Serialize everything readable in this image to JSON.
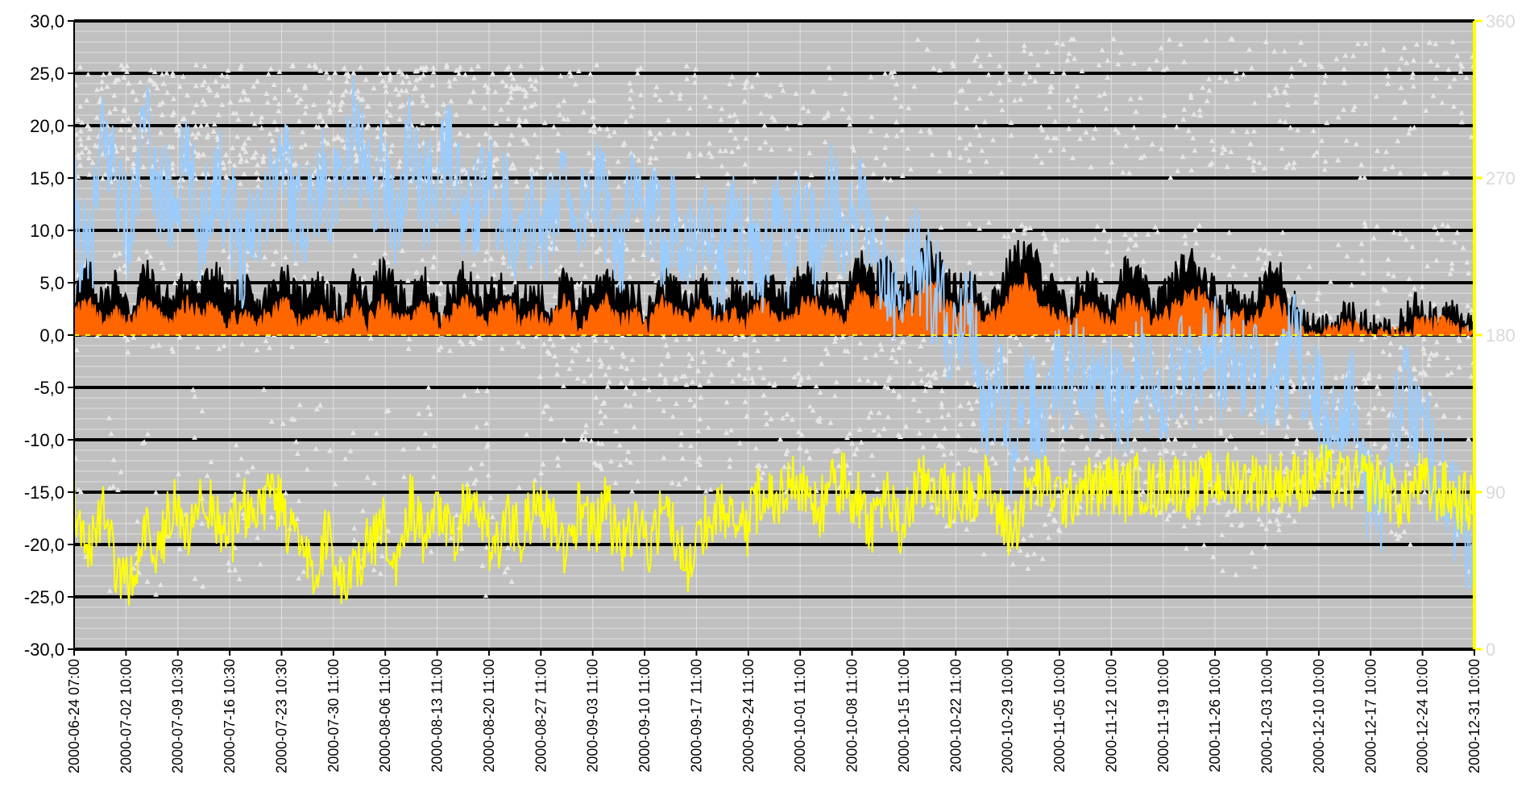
{
  "chart_data": {
    "type": "line",
    "title": "",
    "xlabel": "",
    "ylabel": "",
    "ylim": [
      -30,
      30
    ],
    "y2lim": [
      0,
      360
    ],
    "grid": true,
    "legend": "none",
    "y_ticks": [
      "30,0",
      "25,0",
      "20,0",
      "15,0",
      "10,0",
      "5,0",
      "0,0",
      "-5,0",
      "-10,0",
      "-15,0",
      "-20,0",
      "-25,0",
      "-30,0"
    ],
    "y2_ticks": [
      "360",
      "270",
      "180",
      "90",
      "0"
    ],
    "x_ticks": [
      "2000-06-24 07:00",
      "2000-07-02 10:00",
      "2000-07-09 10:30",
      "2000-07-16 10:30",
      "2000-07-23 10:30",
      "2000-07-30 11:00",
      "2000-08-06 11:00",
      "2000-08-13 11:00",
      "2000-08-20 11:00",
      "2000-08-27 11:00",
      "2000-09-03 11:00",
      "2000-09-10 11:00",
      "2000-09-17 11:00",
      "2000-09-24 11:00",
      "2000-10-01 11:00",
      "2000-10-08 11:00",
      "2000-10-15 11:00",
      "2000-10-22 11:00",
      "2000-10-29 10:00",
      "2000-11-05 10:00",
      "2000-11-12 10:00",
      "2000-11-19 10:00",
      "2000-11-26 10:00",
      "2000-12-03 10:00",
      "2000-12-10 10:00",
      "2000-12-17 10:00",
      "2000-12-24 10:00",
      "2000-12-31 10:00"
    ],
    "colors": {
      "plot_bg": "#c0c0c0",
      "minor_grid": "#e0e0e0",
      "major_grid": "#000000",
      "temperature": "#99ccff",
      "wind_max": "#000000",
      "wind_mean": "#ff6600",
      "humidity": "#ffff00",
      "wind_dir": "#e6e6e6",
      "right_axis": "#ffff00"
    },
    "series": [
      {
        "key": "temperature",
        "axis": "left",
        "values": [
          12,
          6,
          18,
          16,
          9,
          20,
          14,
          12,
          16,
          10,
          15,
          13,
          8,
          12,
          14,
          17,
          11,
          13,
          15,
          12,
          20,
          14,
          16,
          11,
          18,
          13,
          15,
          17,
          10,
          13,
          14,
          12,
          8,
          12,
          10,
          16,
          11,
          14,
          12,
          9,
          13,
          11,
          10,
          12,
          8,
          11,
          6,
          10,
          9,
          7,
          11,
          8,
          12,
          9,
          14,
          8,
          12,
          10,
          6,
          4,
          8,
          5,
          3,
          -2,
          2,
          -8,
          -4,
          -12,
          -6,
          -9,
          -3,
          -5,
          -2,
          -7,
          -4,
          -8,
          -3,
          -5,
          -6,
          -2,
          -4,
          0,
          -3,
          -2,
          -5,
          -3,
          -6,
          -1,
          -4,
          -7,
          -9,
          -5,
          -12,
          -18,
          -10,
          -6,
          -8,
          -12,
          -15,
          -18,
          -22
        ]
      },
      {
        "key": "wind_max",
        "axis": "left",
        "values": [
          4,
          6,
          3,
          5,
          2,
          6,
          4,
          3,
          5,
          4,
          6,
          3,
          5,
          2,
          4,
          6,
          3,
          5,
          4,
          2,
          5,
          3,
          6,
          4,
          3,
          5,
          2,
          4,
          6,
          3,
          4,
          5,
          3,
          4,
          2,
          5,
          3,
          4,
          6,
          3,
          4,
          2,
          5,
          4,
          3,
          5,
          2,
          4,
          3,
          5,
          4,
          3,
          6,
          5,
          4,
          3,
          7,
          5,
          6,
          4,
          5,
          8,
          6,
          4,
          5,
          3,
          4,
          7,
          8,
          6,
          4,
          2,
          5,
          4,
          3,
          6,
          5,
          3,
          4,
          6,
          7,
          5,
          3,
          4,
          2,
          5,
          6,
          3,
          1,
          0,
          1,
          2,
          1,
          0,
          0,
          1,
          3,
          2,
          2,
          1,
          1
        ]
      },
      {
        "key": "wind_mean",
        "axis": "left",
        "values": [
          2,
          3,
          1,
          2,
          1,
          3,
          2,
          1,
          3,
          2,
          3,
          1,
          2,
          1,
          2,
          3,
          1,
          2,
          2,
          1,
          3,
          1,
          3,
          2,
          1,
          3,
          1,
          2,
          3,
          1,
          2,
          3,
          1,
          2,
          1,
          3,
          1,
          2,
          3,
          1,
          2,
          1,
          3,
          2,
          1,
          3,
          1,
          2,
          1,
          3,
          2,
          1,
          3,
          3,
          2,
          1,
          4,
          3,
          3,
          2,
          3,
          5,
          3,
          2,
          3,
          1,
          2,
          4,
          5,
          3,
          2,
          1,
          3,
          2,
          1,
          3,
          3,
          1,
          2,
          3,
          4,
          3,
          1,
          2,
          1,
          3,
          3,
          1,
          0,
          0,
          0,
          1,
          0,
          0,
          0,
          0,
          1,
          1,
          1,
          0,
          0
        ]
      },
      {
        "key": "humidity",
        "axis": "left",
        "values": [
          -16,
          -20,
          -17,
          -22,
          -24,
          -18,
          -21,
          -16,
          -19,
          -15,
          -17,
          -20,
          -16,
          -18,
          -15,
          -17,
          -21,
          -23,
          -19,
          -24,
          -22,
          -20,
          -18,
          -21,
          -16,
          -19,
          -17,
          -20,
          -16,
          -18,
          -21,
          -17,
          -19,
          -16,
          -18,
          -20,
          -17,
          -19,
          -16,
          -21,
          -18,
          -20,
          -17,
          -19,
          -22,
          -18,
          -16,
          -17,
          -19,
          -15,
          -16,
          -14,
          -15,
          -17,
          -15,
          -14,
          -16,
          -18,
          -15,
          -19,
          -15,
          -14,
          -15,
          -16,
          -15,
          -14,
          -17,
          -19,
          -15,
          -14,
          -15,
          -16,
          -14,
          -15,
          -14,
          -15,
          -14,
          -15,
          -14,
          -14,
          -15,
          -14,
          -14,
          -14,
          -14,
          -14,
          -14,
          -14,
          -14,
          -13,
          -14,
          -14,
          -14,
          -14,
          -15,
          -16,
          -14,
          -15,
          -15,
          -16,
          -16
        ]
      }
    ],
    "scatter": {
      "key": "wind_dir",
      "axis": "right",
      "description_units": "degrees"
    }
  }
}
